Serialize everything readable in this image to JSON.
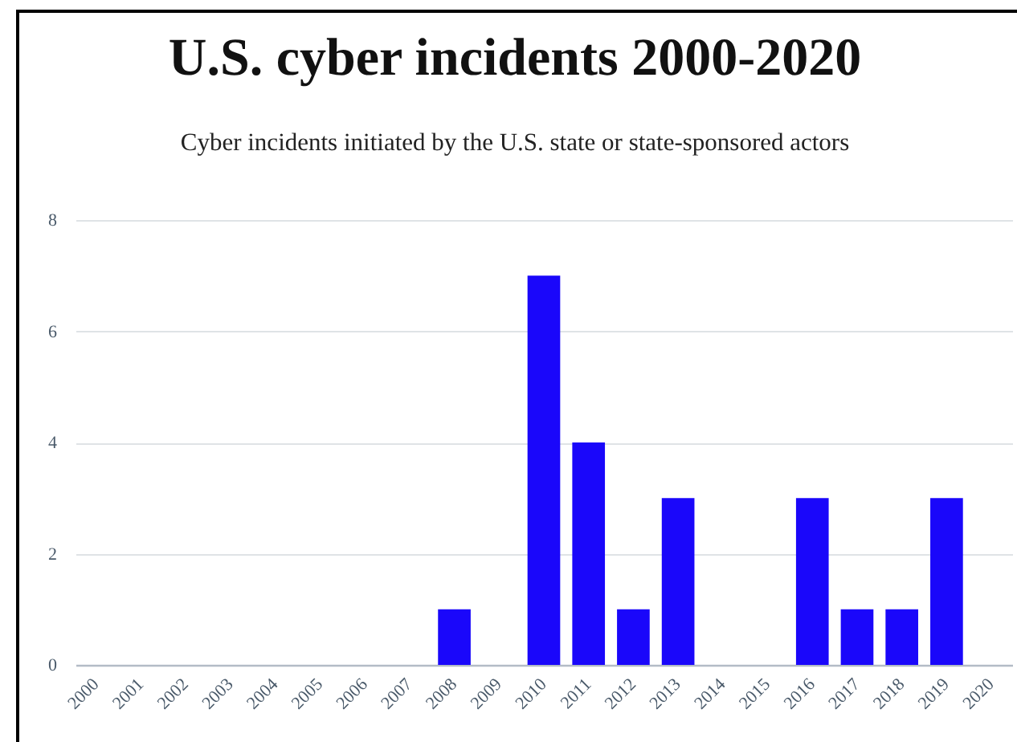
{
  "chart_data": {
    "type": "bar",
    "title": "U.S. cyber incidents 2000-2020",
    "subtitle": "Cyber incidents initiated by the U.S. state or state-sponsored actors",
    "categories": [
      "2000",
      "2001",
      "2002",
      "2003",
      "2004",
      "2005",
      "2006",
      "2007",
      "2008",
      "2009",
      "2010",
      "2011",
      "2012",
      "2013",
      "2014",
      "2015",
      "2016",
      "2017",
      "2018",
      "2019",
      "2020"
    ],
    "values": [
      0,
      0,
      0,
      0,
      0,
      0,
      0,
      0,
      1,
      0,
      7,
      4,
      1,
      3,
      0,
      0,
      3,
      1,
      1,
      3,
      0
    ],
    "color": "#1a07fa",
    "ylim": [
      0,
      8
    ],
    "yticks": [
      0,
      2,
      4,
      6,
      8
    ],
    "grid": "y"
  }
}
